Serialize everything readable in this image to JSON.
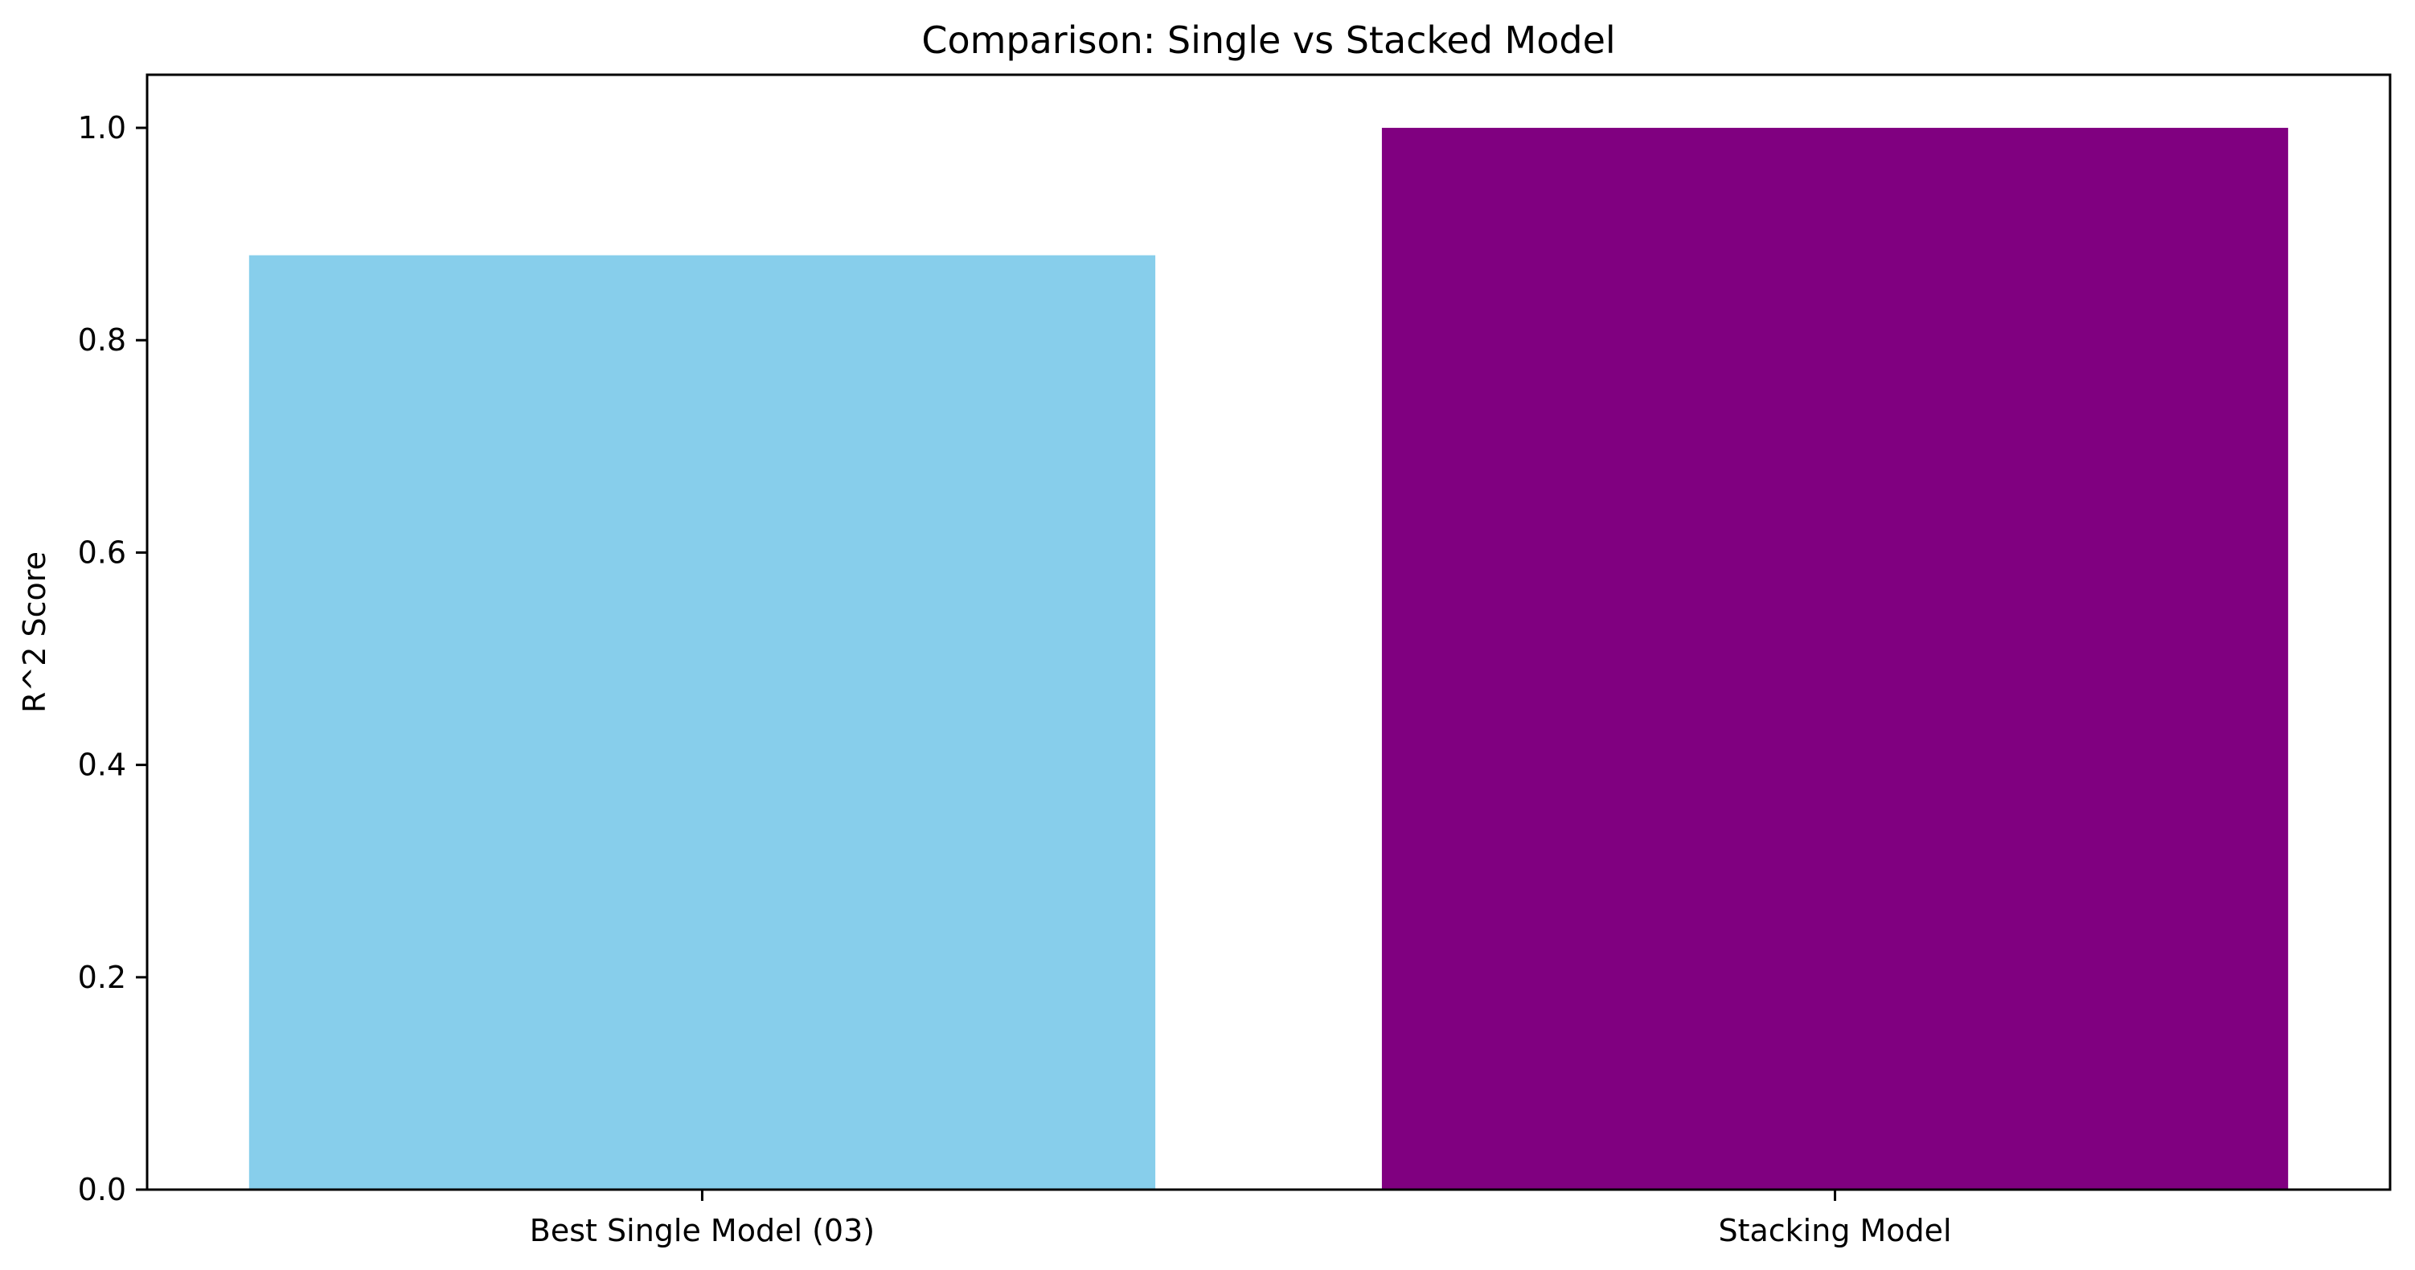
{
  "chart_data": {
    "type": "bar",
    "title": "Comparison: Single vs Stacked Model",
    "xlabel": "",
    "ylabel": "R^2 Score",
    "categories": [
      "Best Single Model (03)",
      "Stacking Model"
    ],
    "values": [
      0.88,
      1.0
    ],
    "colors": [
      "#87ceeb",
      "#800080"
    ],
    "ylim": [
      0,
      1.05
    ],
    "yticks": [
      0.0,
      0.2,
      0.4,
      0.6,
      0.8,
      1.0
    ],
    "ytick_labels": [
      "0.0",
      "0.2",
      "0.4",
      "0.6",
      "0.8",
      "1.0"
    ],
    "grid": false,
    "legend": "none"
  }
}
